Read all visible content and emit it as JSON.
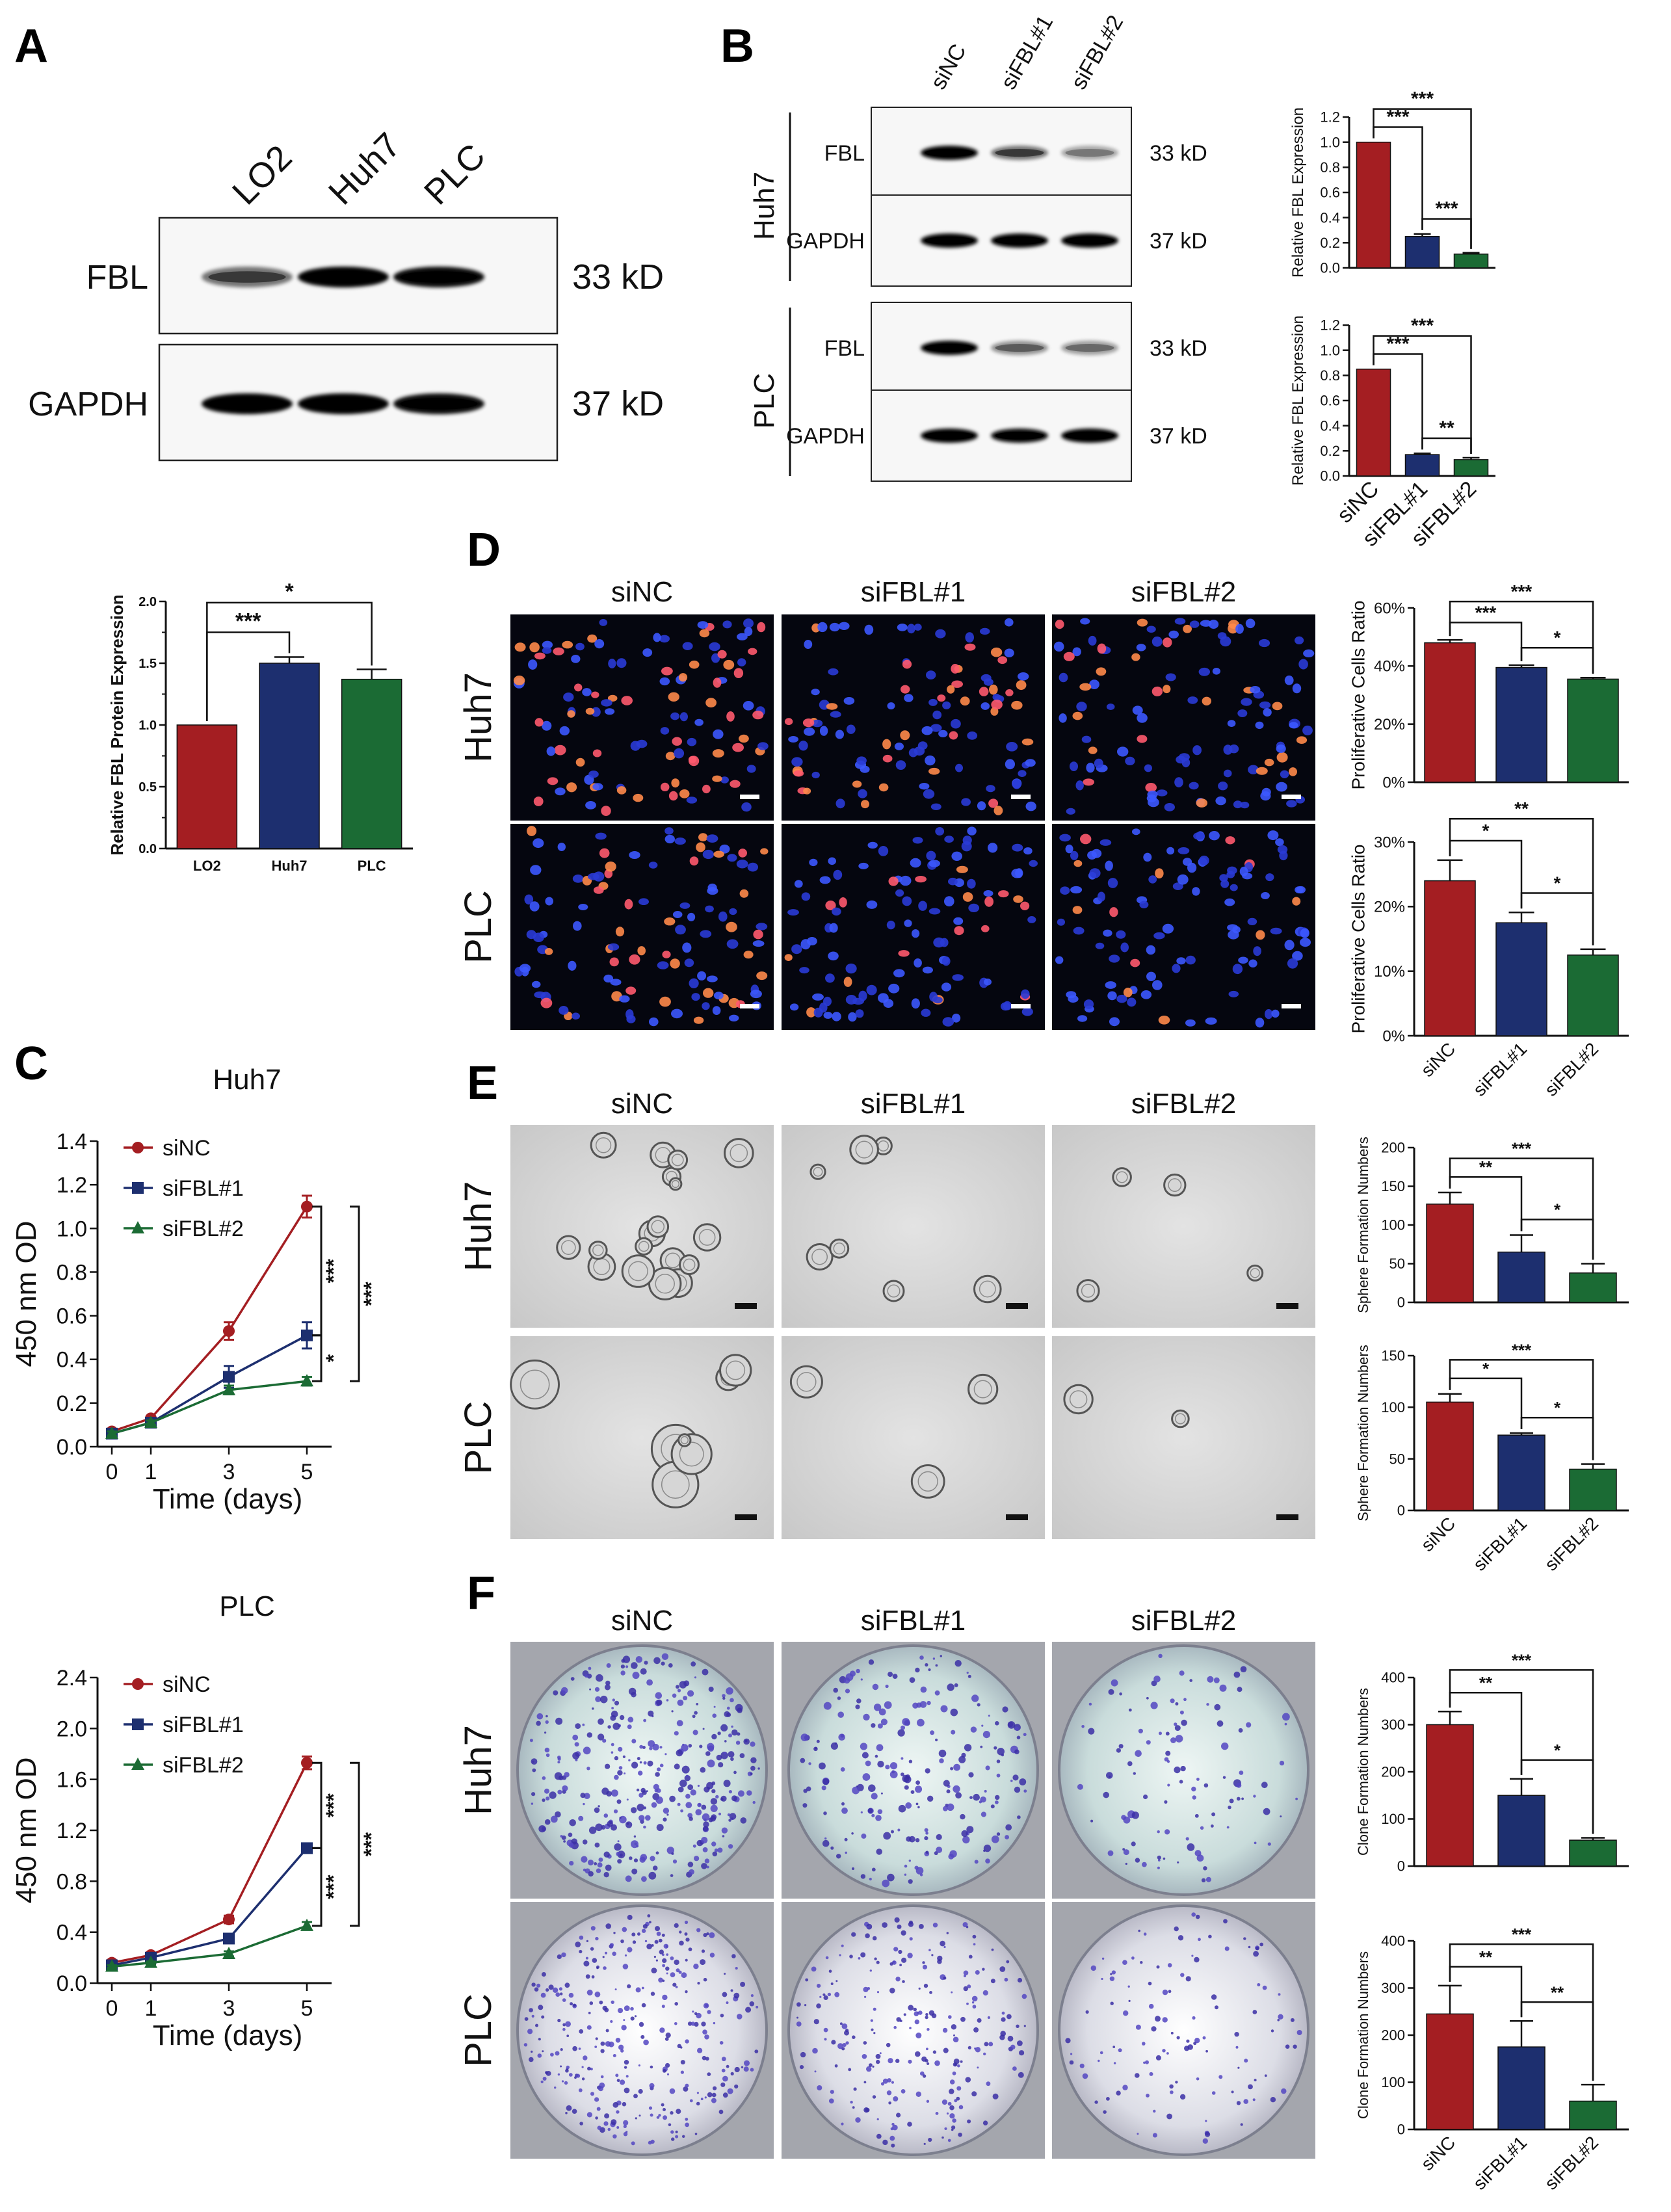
{
  "figure": {
    "panel_labels": {
      "a": "A",
      "b": "B",
      "c": "C",
      "d": "D",
      "e": "E",
      "f": "F"
    },
    "colors": {
      "siNC": "#a41e22",
      "siFBL1": "#1d2f6f",
      "siFBL2": "#1b6b34",
      "LO2": "#a41e22",
      "Huh7": "#1d2f6f",
      "PLC": "#1b6b34"
    }
  },
  "panel_a": {
    "lanes": [
      "LO2",
      "Huh7",
      "PLC"
    ],
    "blots": [
      {
        "protein": "FBL",
        "size": "33 kD",
        "bands": [
          0.45,
          1.0,
          0.95
        ]
      },
      {
        "protein": "GAPDH",
        "size": "37 kD",
        "bands": [
          1.0,
          1.0,
          0.95
        ]
      }
    ]
  },
  "panel_b": {
    "lanes": [
      "siNC",
      "siFBL#1",
      "siFBL#2"
    ],
    "groups": [
      {
        "cell": "Huh7",
        "blots": [
          {
            "protein": "FBL",
            "size": "33 kD",
            "bands": [
              1.0,
              0.45,
              0.2
            ]
          },
          {
            "protein": "GAPDH",
            "size": "37 kD",
            "bands": [
              1.0,
              1.0,
              1.0
            ]
          }
        ]
      },
      {
        "cell": "PLC",
        "blots": [
          {
            "protein": "FBL",
            "size": "33 kD",
            "bands": [
              1.0,
              0.3,
              0.25
            ]
          },
          {
            "protein": "GAPDH",
            "size": "37 kD",
            "bands": [
              1.0,
              0.95,
              1.0
            ]
          }
        ]
      }
    ]
  },
  "panel_d": {
    "columns": [
      "siNC",
      "siFBL#1",
      "siFBL#2"
    ],
    "rows": [
      "Huh7",
      "PLC"
    ]
  },
  "panel_e": {
    "columns": [
      "siNC",
      "siFBL#1",
      "siFBL#2"
    ],
    "rows": [
      "Huh7",
      "PLC"
    ]
  },
  "panel_f": {
    "columns": [
      "siNC",
      "siFBL#1",
      "siFBL#2"
    ],
    "rows": [
      "Huh7",
      "PLC"
    ]
  },
  "chart_data": [
    {
      "id": "a_bar",
      "type": "bar",
      "categories": [
        "LO2",
        "Huh7",
        "PLC"
      ],
      "values": [
        1.0,
        1.5,
        1.37
      ],
      "errors": [
        0,
        0.05,
        0.08
      ],
      "ylabel": "Relative FBL Protein Expression",
      "ylim": [
        0,
        2.0
      ],
      "yticks": [
        "0.0",
        "0.5",
        "1.0",
        "1.5",
        "2.0"
      ],
      "yminor": true,
      "sig": [
        {
          "from": 0,
          "to": 1,
          "label": "***"
        },
        {
          "from": 0,
          "to": 2,
          "label": "*"
        }
      ]
    },
    {
      "id": "b_huh7",
      "type": "bar",
      "categories": [
        "siNC",
        "siFBL#1",
        "siFBL#2"
      ],
      "values": [
        1.0,
        0.25,
        0.11
      ],
      "errors": [
        0,
        0.02,
        0.01
      ],
      "ylabel": "Relative FBL Expression",
      "ylim": [
        0,
        1.2
      ],
      "yticks": [
        "0.0",
        "0.2",
        "0.4",
        "0.6",
        "0.8",
        "1.0",
        "1.2"
      ],
      "sig": [
        {
          "from": 0,
          "to": 1,
          "label": "***"
        },
        {
          "from": 1,
          "to": 2,
          "label": "***"
        },
        {
          "from": 0,
          "to": 2,
          "label": "***"
        }
      ]
    },
    {
      "id": "b_plc",
      "type": "bar",
      "categories": [
        "siNC",
        "siFBL#1",
        "siFBL#2"
      ],
      "values": [
        0.85,
        0.17,
        0.13
      ],
      "errors": [
        0,
        0.01,
        0.015
      ],
      "ylabel": "Relative FBL Expression",
      "ylim": [
        0,
        1.2
      ],
      "yticks": [
        "0.0",
        "0.2",
        "0.4",
        "0.6",
        "0.8",
        "1.0",
        "1.2"
      ],
      "sig": [
        {
          "from": 0,
          "to": 1,
          "label": "***"
        },
        {
          "from": 1,
          "to": 2,
          "label": "**"
        },
        {
          "from": 0,
          "to": 2,
          "label": "***"
        }
      ]
    },
    {
      "id": "d_huh7",
      "type": "bar",
      "categories": [
        "siNC",
        "siFBL#1",
        "siFBL#2"
      ],
      "values": [
        48,
        39.5,
        35.5
      ],
      "errors": [
        1,
        0.8,
        0.5
      ],
      "ylabel": "Proliferative Cells Ratio",
      "ylim": [
        0,
        60
      ],
      "yticks": [
        "0%",
        "20%",
        "40%",
        "60%"
      ],
      "sig": [
        {
          "from": 0,
          "to": 1,
          "label": "***"
        },
        {
          "from": 1,
          "to": 2,
          "label": "*"
        },
        {
          "from": 0,
          "to": 2,
          "label": "***"
        }
      ]
    },
    {
      "id": "d_plc",
      "type": "bar",
      "categories": [
        "siNC",
        "siFBL#1",
        "siFBL#2"
      ],
      "values": [
        24,
        17.5,
        12.5
      ],
      "errors": [
        3.2,
        1.6,
        0.9
      ],
      "ylabel": "Proliferative Cells Ratio",
      "ylim": [
        0,
        30
      ],
      "yticks": [
        "0%",
        "10%",
        "20%",
        "30%"
      ],
      "sig": [
        {
          "from": 0,
          "to": 1,
          "label": "*"
        },
        {
          "from": 1,
          "to": 2,
          "label": "*"
        },
        {
          "from": 0,
          "to": 2,
          "label": "**"
        }
      ]
    },
    {
      "id": "e_huh7",
      "type": "bar",
      "categories": [
        "siNC",
        "siFBL#1",
        "siFBL#2"
      ],
      "values": [
        127,
        65,
        38
      ],
      "errors": [
        15,
        22,
        12
      ],
      "ylabel": "Sphere Formation Numbers",
      "ylim": [
        0,
        200
      ],
      "yticks": [
        "0",
        "50",
        "100",
        "150",
        "200"
      ],
      "sig": [
        {
          "from": 0,
          "to": 1,
          "label": "**"
        },
        {
          "from": 1,
          "to": 2,
          "label": "*"
        },
        {
          "from": 0,
          "to": 2,
          "label": "***"
        }
      ]
    },
    {
      "id": "e_plc",
      "type": "bar",
      "categories": [
        "siNC",
        "siFBL#1",
        "siFBL#2"
      ],
      "values": [
        105,
        73,
        40
      ],
      "errors": [
        8,
        2,
        5
      ],
      "ylabel": "Sphere Formation Numbers",
      "ylim": [
        0,
        150
      ],
      "yticks": [
        "0",
        "50",
        "100",
        "150"
      ],
      "sig": [
        {
          "from": 0,
          "to": 1,
          "label": "*"
        },
        {
          "from": 1,
          "to": 2,
          "label": "*"
        },
        {
          "from": 0,
          "to": 2,
          "label": "***"
        }
      ]
    },
    {
      "id": "f_huh7",
      "type": "bar",
      "categories": [
        "siNC",
        "siFBL#1",
        "siFBL#2"
      ],
      "values": [
        300,
        150,
        55
      ],
      "errors": [
        28,
        35,
        5
      ],
      "ylabel": "Clone Formation Numbers",
      "ylim": [
        0,
        400
      ],
      "yticks": [
        "0",
        "100",
        "200",
        "300",
        "400"
      ],
      "sig": [
        {
          "from": 0,
          "to": 1,
          "label": "**"
        },
        {
          "from": 1,
          "to": 2,
          "label": "*"
        },
        {
          "from": 0,
          "to": 2,
          "label": "***"
        }
      ]
    },
    {
      "id": "f_plc",
      "type": "bar",
      "categories": [
        "siNC",
        "siFBL#1",
        "siFBL#2"
      ],
      "values": [
        245,
        175,
        60
      ],
      "errors": [
        60,
        55,
        35
      ],
      "ylabel": "Clone Formation Numbers",
      "ylim": [
        0,
        400
      ],
      "yticks": [
        "0",
        "100",
        "200",
        "300",
        "400"
      ],
      "sig": [
        {
          "from": 0,
          "to": 1,
          "label": "**"
        },
        {
          "from": 1,
          "to": 2,
          "label": "**"
        },
        {
          "from": 0,
          "to": 2,
          "label": "***"
        }
      ]
    },
    {
      "id": "c_huh7",
      "type": "line",
      "title": "Huh7",
      "x": [
        0,
        1,
        3,
        5
      ],
      "xlabel": "Time (days)",
      "ylabel": "450 nm OD",
      "xticks": [
        "0",
        "1",
        "3",
        "5"
      ],
      "ylim": [
        0,
        1.4
      ],
      "yticks": [
        "0.0",
        "0.2",
        "0.4",
        "0.6",
        "0.8",
        "1.0",
        "1.2",
        "1.4"
      ],
      "series": [
        {
          "name": "siNC",
          "values": [
            0.07,
            0.13,
            0.53,
            1.1
          ],
          "errors": [
            0.01,
            0.01,
            0.04,
            0.05
          ]
        },
        {
          "name": "siFBL#1",
          "values": [
            0.06,
            0.11,
            0.32,
            0.51
          ],
          "errors": [
            0.01,
            0.01,
            0.05,
            0.06
          ]
        },
        {
          "name": "siFBL#2",
          "values": [
            0.06,
            0.11,
            0.26,
            0.3
          ],
          "errors": [
            0.01,
            0.01,
            0.02,
            0.02
          ]
        }
      ],
      "sig": [
        {
          "label": "***",
          "between": "siNC-siFBL#1"
        },
        {
          "label": "*",
          "between": "siFBL#1-siFBL#2"
        },
        {
          "label": "***",
          "between": "siNC-siFBL#2"
        }
      ]
    },
    {
      "id": "c_plc",
      "type": "line",
      "title": "PLC",
      "x": [
        0,
        1,
        3,
        5
      ],
      "xlabel": "Time (days)",
      "ylabel": "450 nm OD",
      "xticks": [
        "0",
        "1",
        "3",
        "5"
      ],
      "ylim": [
        0,
        2.4
      ],
      "yticks": [
        "0.0",
        "0.4",
        "0.8",
        "1.2",
        "1.6",
        "2.0",
        "2.4"
      ],
      "series": [
        {
          "name": "siNC",
          "values": [
            0.16,
            0.22,
            0.5,
            1.73
          ],
          "errors": [
            0.02,
            0.02,
            0.03,
            0.05
          ]
        },
        {
          "name": "siFBL#1",
          "values": [
            0.14,
            0.2,
            0.35,
            1.06
          ],
          "errors": [
            0.02,
            0.02,
            0.02,
            0.03
          ]
        },
        {
          "name": "siFBL#2",
          "values": [
            0.13,
            0.16,
            0.23,
            0.45
          ],
          "errors": [
            0.01,
            0.01,
            0.02,
            0.03
          ]
        }
      ],
      "sig": [
        {
          "label": "***",
          "between": "siNC-siFBL#1"
        },
        {
          "label": "***",
          "between": "siFBL#1-siFBL#2"
        },
        {
          "label": "***",
          "between": "siNC-siFBL#2"
        }
      ]
    }
  ]
}
